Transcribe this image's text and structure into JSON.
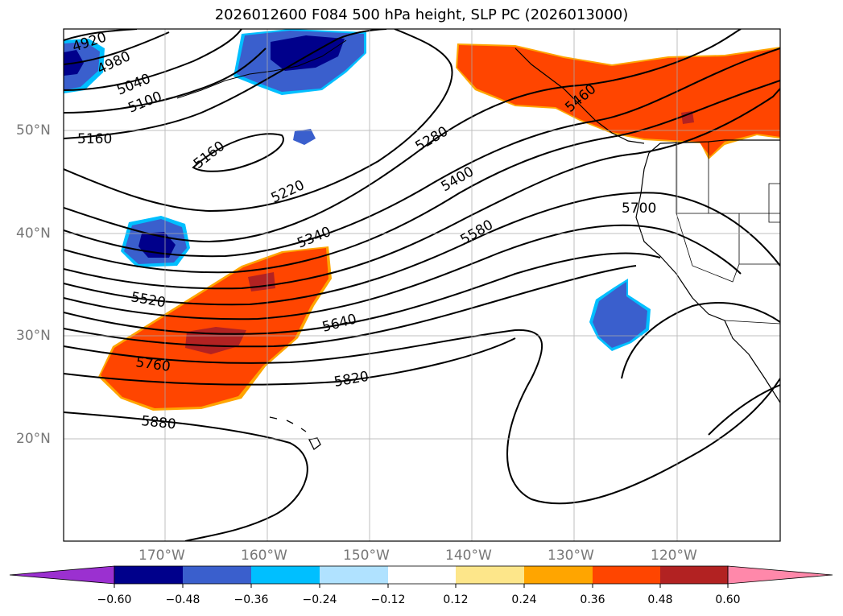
{
  "map": {
    "title": "2026012600 F084 500 hPa height, SLP PC (2026013000)",
    "lat_labels": [
      "50°N",
      "40°N",
      "30°N",
      "20°N"
    ],
    "lon_labels": [
      "170°W",
      "160°W",
      "150°W",
      "140°W",
      "130°W",
      "120°W"
    ],
    "contour_labels": [
      "4920",
      "4980",
      "5040",
      "5100",
      "5160",
      "5160",
      "5220",
      "5280",
      "5340",
      "5400",
      "5460",
      "5520",
      "5580",
      "5640",
      "5700",
      "5760",
      "5820",
      "5880"
    ],
    "colorbar": {
      "ticks": [
        "−0.60",
        "−0.48",
        "−0.36",
        "−0.24",
        "−0.12",
        "0.12",
        "0.24",
        "0.36",
        "0.48",
        "0.60"
      ],
      "colors": [
        "#9b30d0",
        "#00008b",
        "#3a5fcd",
        "#00bfff",
        "#b0e2ff",
        "#ffffff",
        "#fde68a",
        "#ffa500",
        "#ff4500",
        "#b22222",
        "#ff88aa"
      ]
    },
    "fill_colors": {
      "neg_strong": "#00008b",
      "neg_mid": "#3a5fcd",
      "neg_light": "#00bfff",
      "pos_mid": "#ff4500",
      "pos_strong": "#b22222",
      "pos_edge": "#ffa500"
    }
  }
}
